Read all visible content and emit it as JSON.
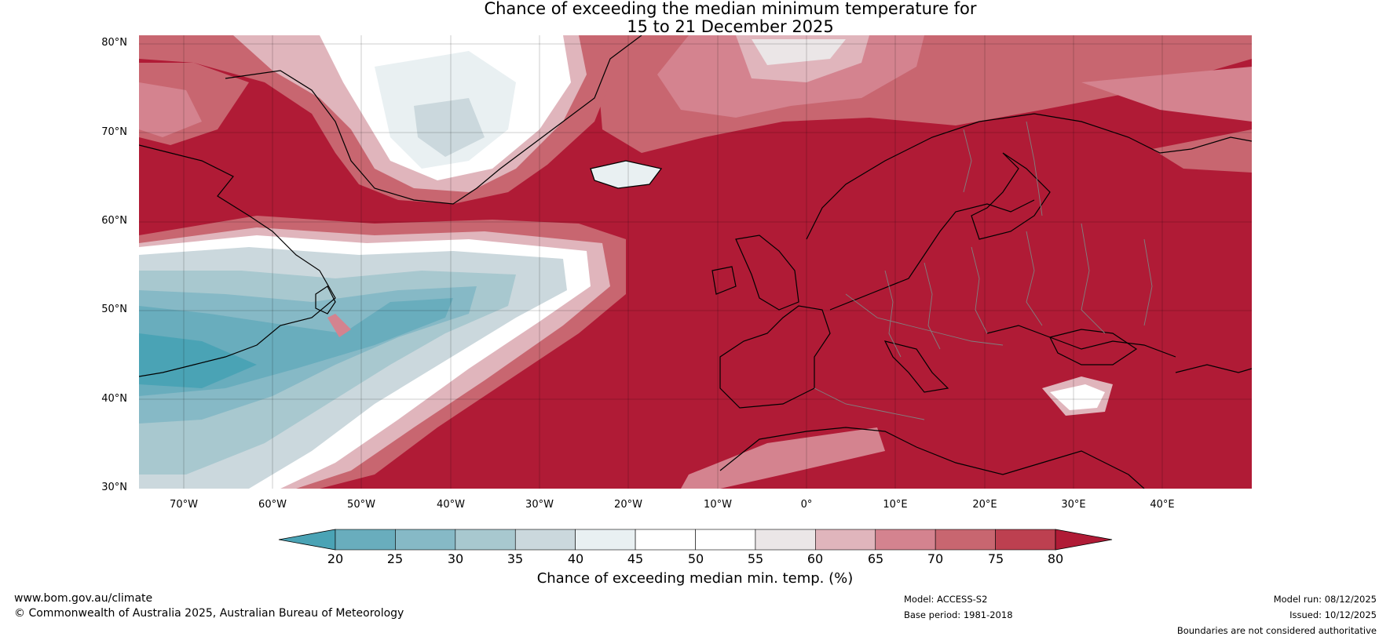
{
  "title": {
    "line1": "Chance of exceeding the median minimum temperature for",
    "line2": "15 to 21 December 2025"
  },
  "map": {
    "extent": {
      "lon": [
        -75,
        50
      ],
      "lat": [
        30,
        81
      ]
    },
    "latitude_labels": [
      "80°N",
      "70°N",
      "60°N",
      "50°N",
      "40°N",
      "30°N"
    ],
    "longitude_labels": [
      "70°W",
      "60°W",
      "50°W",
      "40°W",
      "30°W",
      "20°W",
      "10°W",
      "0°",
      "10°E",
      "20°E",
      "30°E",
      "40°E"
    ],
    "regions": [
      {
        "region": "Western North Atlantic / Nova Scotia",
        "chance_percent": "20-40"
      },
      {
        "region": "Central North Atlantic (40-50°N, 50-25°W)",
        "chance_percent": "25-45"
      },
      {
        "region": "Interior Greenland",
        "chance_percent": "35-60"
      },
      {
        "region": "Europe, Mediterranean, Eastern Atlantic",
        "chance_percent": ">80"
      },
      {
        "region": "Anatolia",
        "chance_percent": "45-60"
      },
      {
        "region": "Norwegian / Barents Sea",
        "chance_percent": "65-80"
      }
    ]
  },
  "colorbar": {
    "title": "Chance of exceeding median min. temp. (%)",
    "ticks": [
      "20",
      "25",
      "30",
      "35",
      "40",
      "45",
      "50",
      "55",
      "60",
      "65",
      "70",
      "75",
      "80"
    ],
    "colors": [
      "#4aa3b5",
      "#69adbd",
      "#86b9c6",
      "#a8c8cf",
      "#cbd8dd",
      "#e9f0f2",
      "#ffffff",
      "#ffffff",
      "#ebe6e7",
      "#e0b5bc",
      "#d4838f",
      "#c86670",
      "#bd4050",
      "#b01b36"
    ]
  },
  "footer": {
    "website": "www.bom.gov.au/climate",
    "copyright": "© Commonwealth of Australia 2025, Australian Bureau of Meteorology",
    "model": "Model: ACCESS-S2",
    "base_period": "Base period: 1981-2018",
    "model_run": "Model run: 08/12/2025",
    "issued": "Issued: 10/12/2025",
    "disclaimer": "Boundaries are not considered authoritative"
  }
}
